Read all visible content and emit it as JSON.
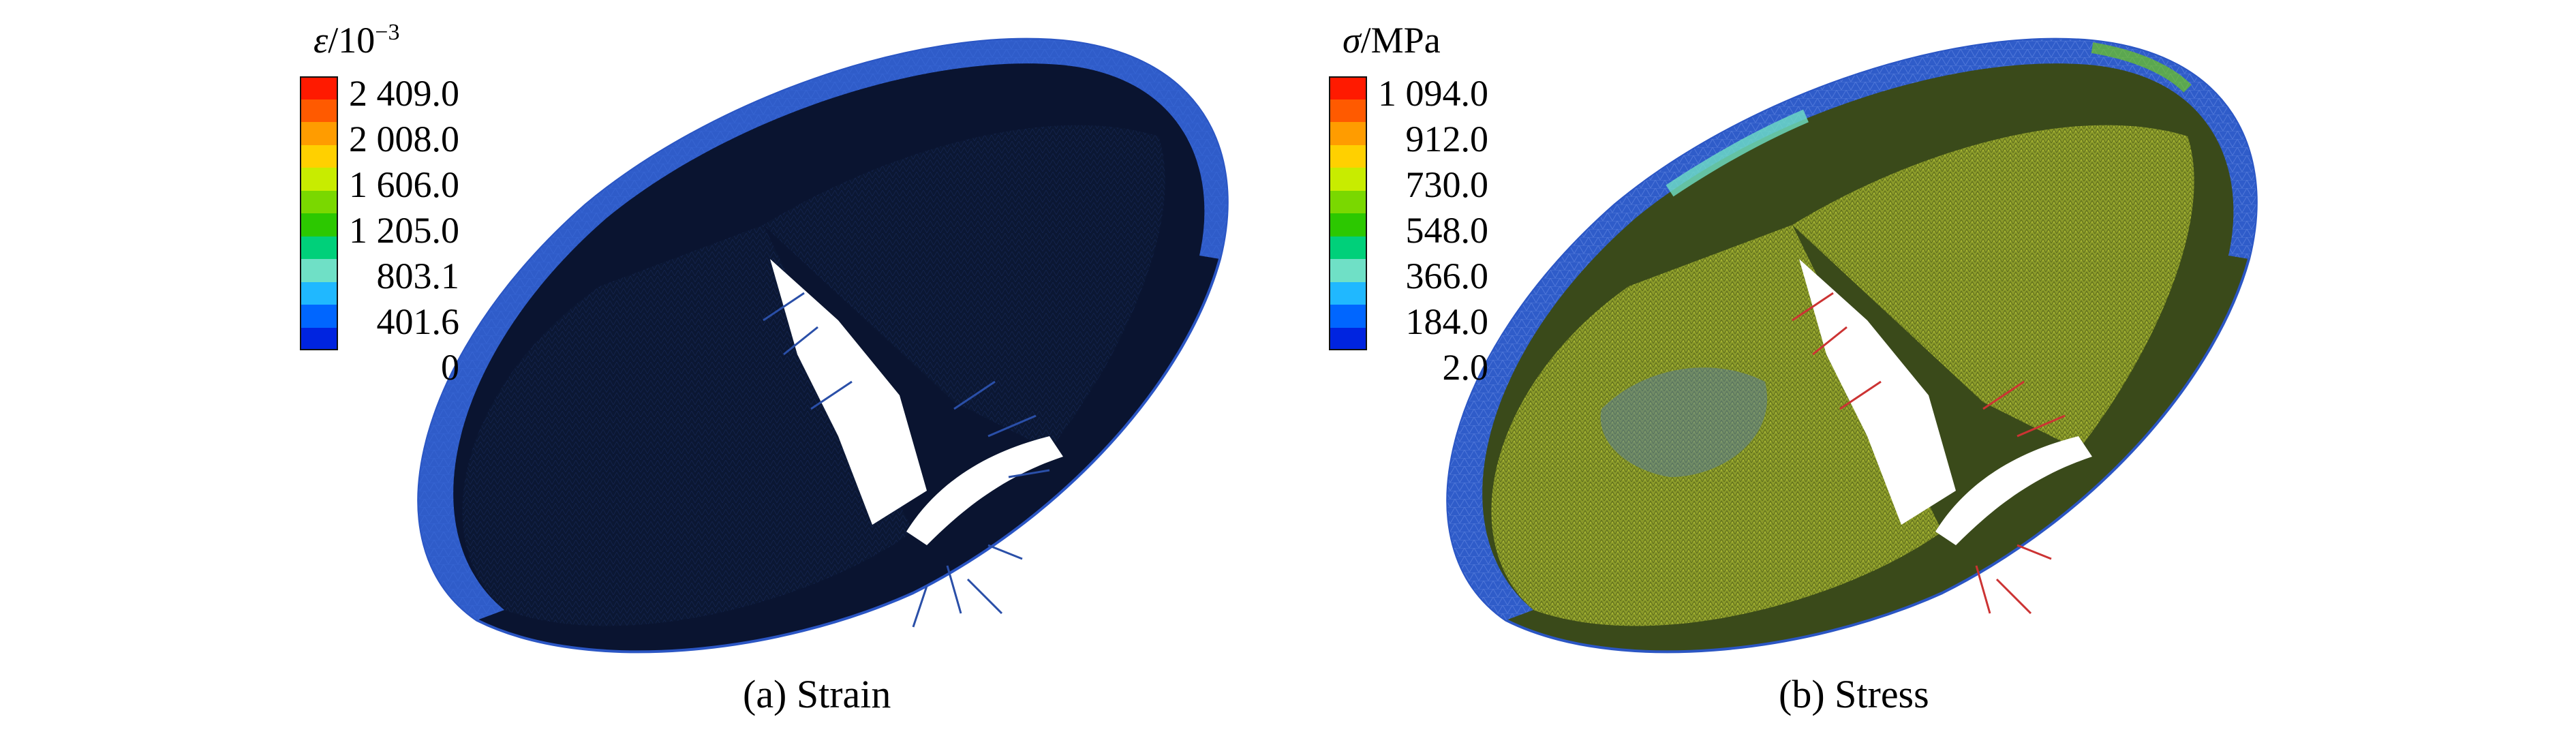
{
  "panels": [
    {
      "caption": "(a) Strain",
      "legend": {
        "symbol": "ε",
        "unit": "/10",
        "exponent": "−3",
        "ticks": [
          "2 409.0",
          "2 008.0",
          "1 606.0",
          "1 205.0",
          "803.1",
          "401.6",
          "0"
        ]
      }
    },
    {
      "caption": "(b) Stress",
      "legend": {
        "symbol": "σ",
        "unit": "/MPa",
        "ticks": [
          "1 094.0",
          "912.0",
          "730.0",
          "548.0",
          "366.0",
          "184.0",
          "2.0"
        ]
      }
    }
  ],
  "colors": {
    "scale": [
      "#ff0000",
      "#ff4a00",
      "#ff9a00",
      "#ffe000",
      "#c8f000",
      "#74e000",
      "#20c800",
      "#00d66e",
      "#6ee0c0",
      "#1ec0ff",
      "#0070ff",
      "#0028e0"
    ],
    "strain_body": "#0b1733",
    "stress_body": "#7e8c24",
    "rim_blue": "#2e58c8"
  }
}
